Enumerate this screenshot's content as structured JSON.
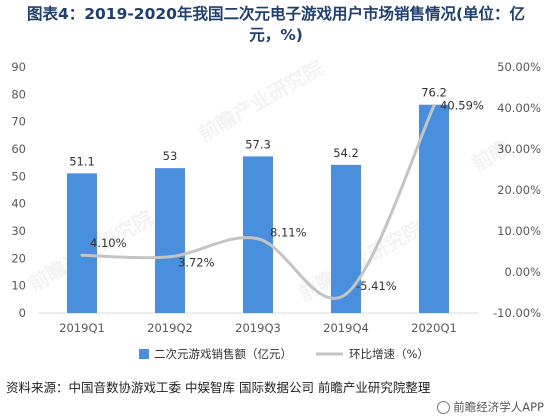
{
  "title_line1": "图表4：2019-2020年我国二次元电子游戏用户市场销售情况(单位：亿",
  "title_line2": "元，%)",
  "source": "资料来源：中国音数协游戏工委 中娱智库 国际数据公司 前瞻产业研究院整理",
  "brand": "前瞻经济学人APP",
  "colors": {
    "bar": "#4a8ede",
    "line": "#c4c4c4",
    "axis_text": "#595959",
    "grid": "#d9d9d9"
  },
  "chart_data": {
    "type": "bar",
    "categories": [
      "2019Q1",
      "2019Q2",
      "2019Q3",
      "2019Q4",
      "2020Q1"
    ],
    "series": [
      {
        "name": "二次元游戏销售额（亿元）",
        "type": "bar",
        "axis": "left",
        "values": [
          51.1,
          53,
          57.3,
          54.2,
          76.2
        ],
        "labels": [
          "51.1",
          "53",
          "57.3",
          "54.2",
          "76.2"
        ]
      },
      {
        "name": "环比增速（%）",
        "type": "line",
        "axis": "right",
        "values": [
          4.1,
          3.72,
          8.11,
          -5.41,
          40.59
        ],
        "labels": [
          "4.10%",
          "3.72%",
          "8.11%",
          "-5.41%",
          "40.59%"
        ]
      }
    ],
    "y_left": {
      "min": 0,
      "max": 90,
      "step": 10,
      "ticks": [
        "0",
        "10",
        "20",
        "30",
        "40",
        "50",
        "60",
        "70",
        "80",
        "90"
      ]
    },
    "y_right": {
      "min": -10,
      "max": 50,
      "step": 10,
      "ticks": [
        "-10.00%",
        "0.00%",
        "10.00%",
        "20.00%",
        "30.00%",
        "40.00%",
        "50.00%"
      ]
    },
    "grid": false,
    "legend_position": "bottom"
  }
}
